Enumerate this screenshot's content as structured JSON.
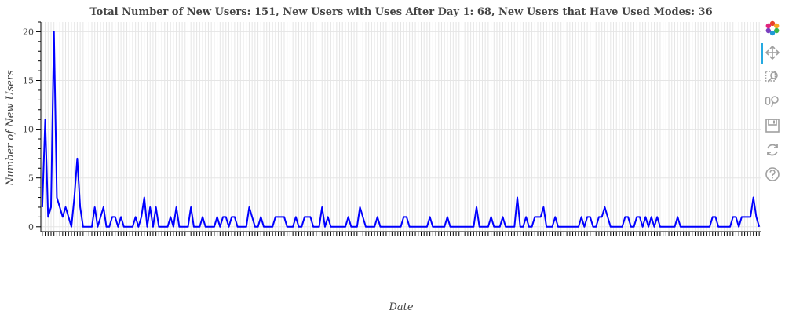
{
  "chart_data": {
    "type": "line",
    "title": "Total Number of New Users: 151, New Users with Uses After Day 1: 68, New Users that Have Used Modes: 36",
    "xlabel": "Date",
    "ylabel": "Number of New Users",
    "ylim": [
      -0.5,
      21
    ],
    "yticks": [
      0,
      5,
      10,
      15,
      20
    ],
    "grid": true,
    "line_color": "#0000ff",
    "series": [
      {
        "values": [
          2,
          11,
          1,
          2,
          20,
          3,
          2,
          1,
          2,
          1,
          0,
          3,
          7,
          2,
          0,
          0,
          0,
          0,
          2,
          0,
          1,
          2,
          0,
          0,
          1,
          1,
          0,
          1,
          0,
          0,
          0,
          0,
          1,
          0,
          1,
          3,
          0,
          2,
          0,
          2,
          0,
          0,
          0,
          0,
          1,
          0,
          2,
          0,
          0,
          0,
          0,
          2,
          0,
          0,
          0,
          1,
          0,
          0,
          0,
          0,
          1,
          0,
          1,
          1,
          0,
          1,
          1,
          0,
          0,
          0,
          0,
          2,
          1,
          0,
          0,
          1,
          0,
          0,
          0,
          0,
          1,
          1,
          1,
          1,
          0,
          0,
          0,
          1,
          0,
          0,
          1,
          1,
          1,
          0,
          0,
          0,
          2,
          0,
          1,
          0,
          0,
          0,
          0,
          0,
          0,
          1,
          0,
          0,
          0,
          2,
          1,
          0,
          0,
          0,
          0,
          1,
          0,
          0,
          0,
          0,
          0,
          0,
          0,
          0,
          1,
          1,
          0,
          0,
          0,
          0,
          0,
          0,
          0,
          1,
          0,
          0,
          0,
          0,
          0,
          1,
          0,
          0,
          0,
          0,
          0,
          0,
          0,
          0,
          0,
          2,
          0,
          0,
          0,
          0,
          1,
          0,
          0,
          0,
          1,
          0,
          0,
          0,
          0,
          3,
          0,
          0,
          1,
          0,
          0,
          1,
          1,
          1,
          2,
          0,
          0,
          0,
          1,
          0,
          0,
          0,
          0,
          0,
          0,
          0,
          0,
          1,
          0,
          1,
          1,
          0,
          0,
          1,
          1,
          2,
          1,
          0,
          0,
          0,
          0,
          0,
          1,
          1,
          0,
          0,
          1,
          1,
          0,
          1,
          0,
          1,
          0,
          1,
          0,
          0,
          0,
          0,
          0,
          0,
          1,
          0,
          0,
          0,
          0,
          0,
          0,
          0,
          0,
          0,
          0,
          0,
          1,
          1,
          0,
          0,
          0,
          0,
          0,
          1,
          1,
          0,
          1,
          1,
          1,
          1,
          3,
          1,
          0
        ]
      }
    ]
  },
  "toolbar": {
    "tools": [
      "bokeh-logo-icon",
      "pan-icon",
      "box-zoom-icon",
      "wheel-zoom-icon",
      "save-icon",
      "reset-icon",
      "help-icon"
    ],
    "active_tool": "pan-icon"
  }
}
